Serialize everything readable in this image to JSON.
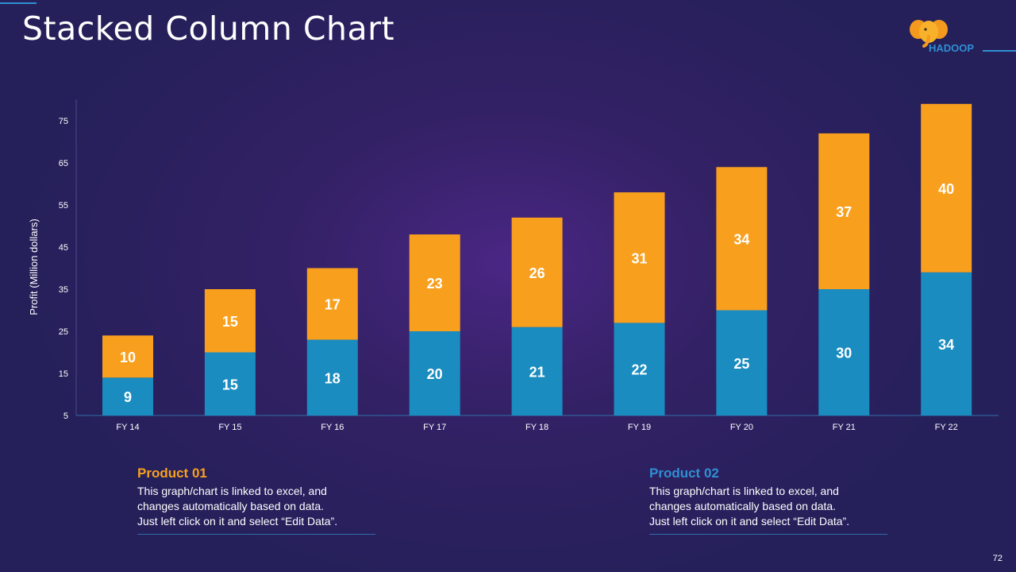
{
  "page": {
    "title": "Stacked Column Chart",
    "page_number": "72",
    "logo_text": "HADOOP"
  },
  "colors": {
    "product01": "#f8a01e",
    "product02": "#1a8cc0",
    "product01_title": "#f8a01e",
    "product02_title": "#2f8fd3"
  },
  "chart_data": {
    "type": "bar",
    "stacked": true,
    "categories": [
      "FY 14",
      "FY 15",
      "FY 16",
      "FY 17",
      "FY 18",
      "FY 19",
      "FY 20",
      "FY 21",
      "FY 22"
    ],
    "series": [
      {
        "name": "Product 02",
        "values": [
          9,
          15,
          18,
          20,
          21,
          22,
          25,
          30,
          34
        ]
      },
      {
        "name": "Product 01",
        "values": [
          10,
          15,
          17,
          23,
          26,
          31,
          34,
          37,
          40
        ]
      }
    ],
    "ylabel": "Profit  (Million dollars)",
    "xlabel": "",
    "ylim": [
      5,
      80
    ],
    "yticks": [
      5,
      15,
      25,
      35,
      45,
      55,
      65,
      75
    ],
    "grid": false,
    "legend": "bottom"
  },
  "legend": {
    "product01": {
      "title": "Product 01",
      "description": "This graph/chart is linked to excel, and\nchanges automatically based on data.\nJust left click on it and select “Edit Data”."
    },
    "product02": {
      "title": "Product 02",
      "description": "This graph/chart is linked to excel, and\nchanges automatically based on data.\nJust left click on it and select “Edit Data”."
    }
  }
}
